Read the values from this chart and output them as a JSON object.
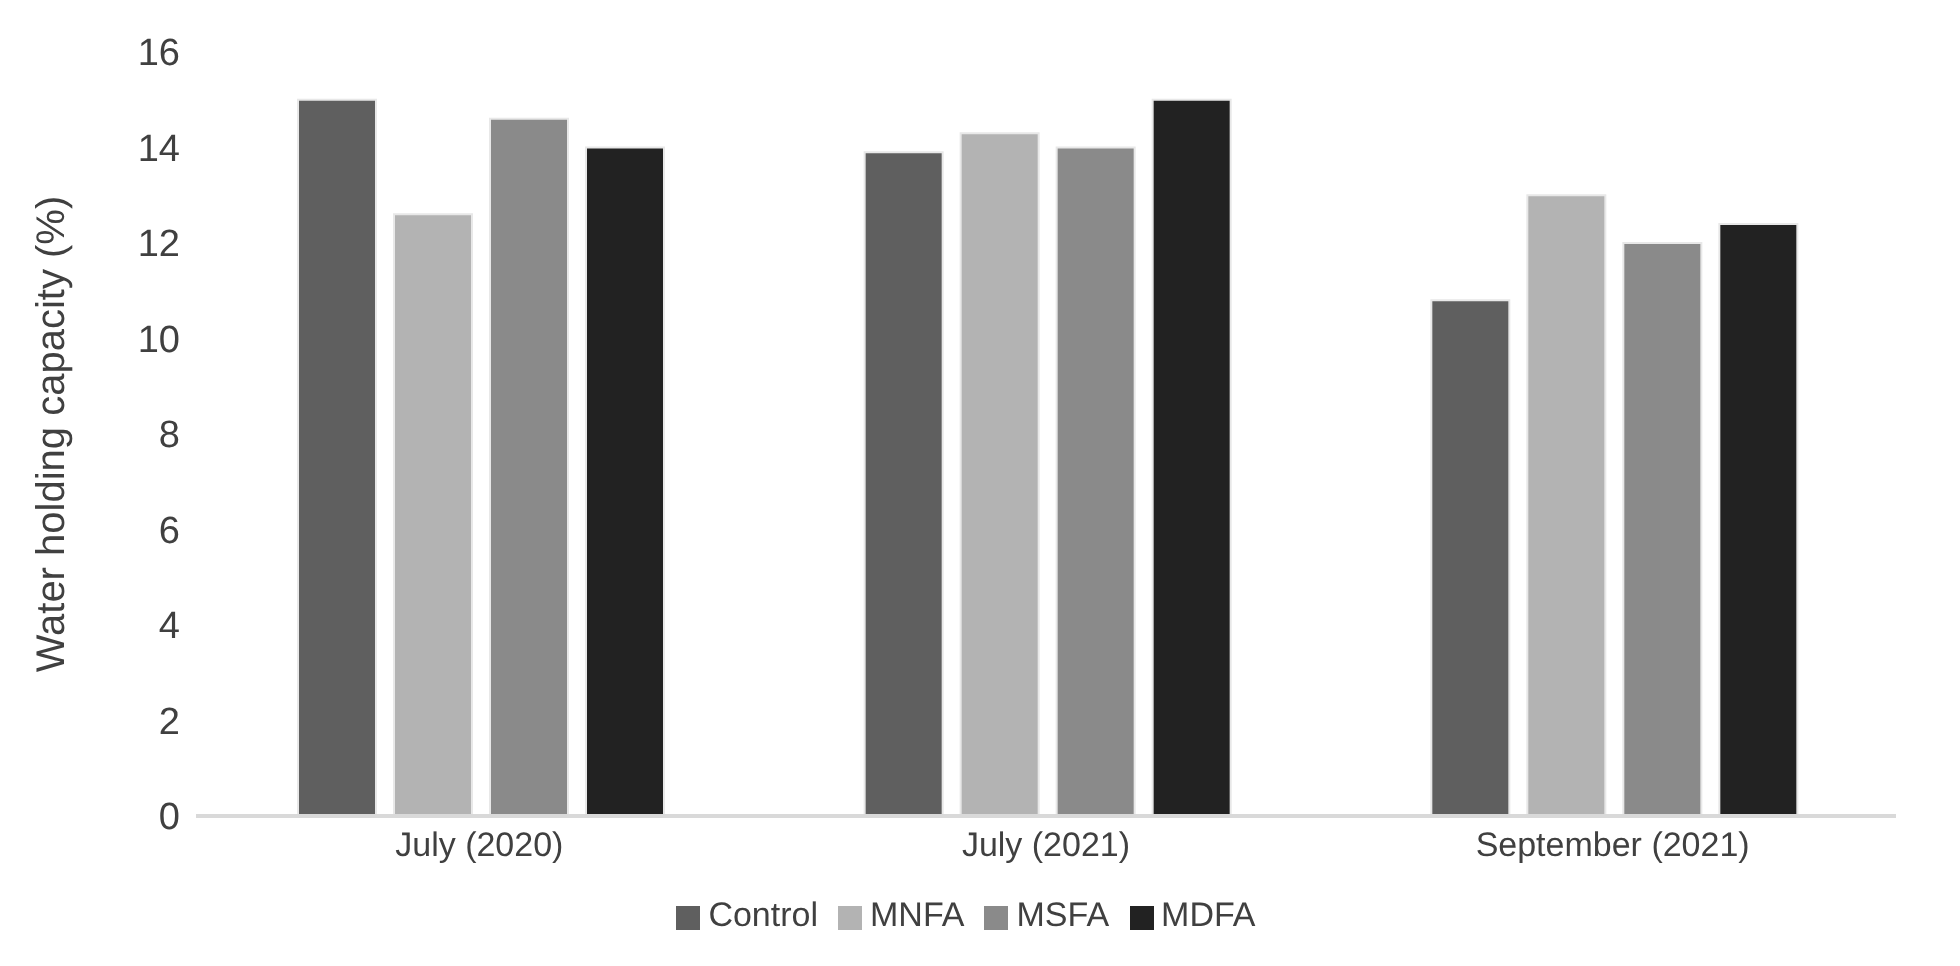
{
  "chart_data": {
    "type": "bar",
    "ylabel": "Water holding capacity (%)",
    "categories": [
      "July (2020)",
      "July (2021)",
      "September (2021)"
    ],
    "series": [
      {
        "name": "Control",
        "color": "#5f5f5f",
        "values": [
          15.0,
          13.9,
          10.8
        ]
      },
      {
        "name": "MNFA",
        "color": "#b3b3b3",
        "values": [
          12.6,
          14.3,
          13.0
        ]
      },
      {
        "name": "MSFA",
        "color": "#8a8a8a",
        "values": [
          14.6,
          14.0,
          12.0
        ]
      },
      {
        "name": "MDFA",
        "color": "#222222",
        "values": [
          14.0,
          15.0,
          12.4
        ]
      }
    ],
    "ylim": [
      0,
      16
    ],
    "yticks": [
      0,
      2,
      4,
      6,
      8,
      10,
      12,
      14,
      16
    ],
    "grid": false,
    "legend": "bottom"
  }
}
